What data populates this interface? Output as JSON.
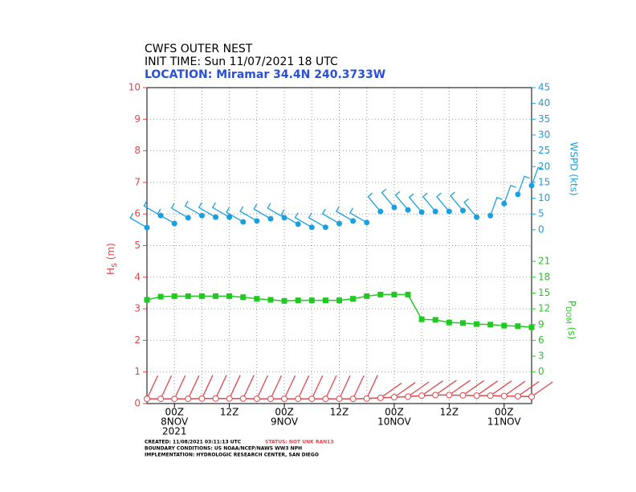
{
  "chart_data": {
    "type": "multi-axis-line",
    "title_lines": [
      "CWFS OUTER NEST",
      "INIT TIME: Sun 11/07/2021 18 UTC"
    ],
    "location": "LOCATION: Miramar 34.4N 240.3733W",
    "y_label": {
      "main": "H",
      "sub": "s",
      "unit": "(m)"
    },
    "y2_label": "WSPD (kts)",
    "y3_label": {
      "main": "P",
      "sub": "DOM",
      "unit": "(s)"
    },
    "xlim": [
      0,
      84
    ],
    "xticks": [
      {
        "value": 6,
        "label": "00Z"
      },
      {
        "value": 18,
        "label": "12Z"
      },
      {
        "value": 30,
        "label": "00Z"
      },
      {
        "value": 42,
        "label": "12Z"
      },
      {
        "value": 54,
        "label": "00Z"
      },
      {
        "value": 66,
        "label": "12Z"
      },
      {
        "value": 78,
        "label": "00Z"
      }
    ],
    "xdates": [
      {
        "value": 6,
        "label": "8NOV"
      },
      {
        "value": 30,
        "label": "9NOV"
      },
      {
        "value": 54,
        "label": "10NOV"
      },
      {
        "value": 78,
        "label": "11NOV"
      }
    ],
    "xyear": {
      "value": 6,
      "label": "2021"
    },
    "xgrid": [
      0,
      6,
      12,
      18,
      24,
      30,
      36,
      42,
      48,
      54,
      60,
      66,
      72,
      78,
      84
    ],
    "x": [
      0,
      3,
      6,
      9,
      12,
      15,
      18,
      21,
      24,
      27,
      30,
      33,
      36,
      39,
      42,
      45,
      48,
      51,
      54,
      57,
      60,
      63,
      66,
      69,
      72,
      75,
      78,
      81,
      84
    ],
    "ylim": [
      0,
      10
    ],
    "yticks": [
      0,
      1,
      2,
      3,
      4,
      5,
      6,
      7,
      8,
      9,
      10
    ],
    "y2lim": [
      -55,
      45
    ],
    "y2ticks": [
      0,
      5,
      10,
      15,
      20,
      25,
      30,
      35,
      40,
      45
    ],
    "y3lim": [
      -6,
      54
    ],
    "y3ticks": [
      0,
      3,
      6,
      9,
      12,
      15,
      18,
      21
    ],
    "grid": true,
    "series": [
      {
        "name": "Hs",
        "color": "#e0474c",
        "axis": "y",
        "values": [
          0.15,
          0.15,
          0.15,
          0.15,
          0.16,
          0.16,
          0.16,
          0.16,
          0.15,
          0.15,
          0.15,
          0.15,
          0.15,
          0.15,
          0.15,
          0.15,
          0.16,
          0.18,
          0.2,
          0.22,
          0.25,
          0.27,
          0.27,
          0.26,
          0.25,
          0.25,
          0.24,
          0.23,
          0.22
        ],
        "directions": [
          205,
          205,
          205,
          205,
          205,
          205,
          205,
          205,
          205,
          205,
          205,
          205,
          205,
          205,
          205,
          205,
          205,
          235,
          235,
          235,
          235,
          235,
          235,
          235,
          235,
          235,
          235,
          235,
          235
        ]
      },
      {
        "name": "WSPD",
        "color": "#1aa0e0",
        "axis": "y2",
        "values": [
          0.7,
          4.5,
          2.0,
          3.8,
          4.5,
          4.0,
          4.0,
          2.5,
          2.8,
          3.5,
          3.8,
          1.8,
          0.8,
          0.8,
          2.0,
          2.8,
          2.3,
          5.8,
          7.1,
          6.3,
          5.6,
          5.8,
          5.8,
          6.1,
          4.0,
          4.5,
          8.3,
          11.2,
          14.0
        ],
        "directions": [
          300,
          300,
          300,
          300,
          300,
          300,
          300,
          300,
          300,
          300,
          300,
          300,
          300,
          300,
          300,
          300,
          300,
          320,
          320,
          320,
          320,
          320,
          320,
          320,
          320,
          20,
          20,
          20,
          20
        ]
      },
      {
        "name": "PDOM",
        "color": "#22c822",
        "axis": "y3",
        "values": [
          13.7,
          14.3,
          14.4,
          14.4,
          14.4,
          14.4,
          14.4,
          14.2,
          13.9,
          13.7,
          13.5,
          13.6,
          13.6,
          13.6,
          13.6,
          13.9,
          14.4,
          14.7,
          14.7,
          14.7,
          10.0,
          9.9,
          9.4,
          9.3,
          9.1,
          9.0,
          8.8,
          8.7,
          8.5
        ]
      }
    ],
    "footer": {
      "created": "CREATED: 11/08/2021 03:11:13 UTC",
      "status": "STATUS: NOT UNK RAN13",
      "boundary": "BOUNDARY CONDITIONS: US NOAA/NCEP/NAWS WW3 NPH",
      "implementation": "IMPLEMENTATION: HYDROLOGIC RESEARCH CENTER, SAN DIEGO"
    }
  }
}
